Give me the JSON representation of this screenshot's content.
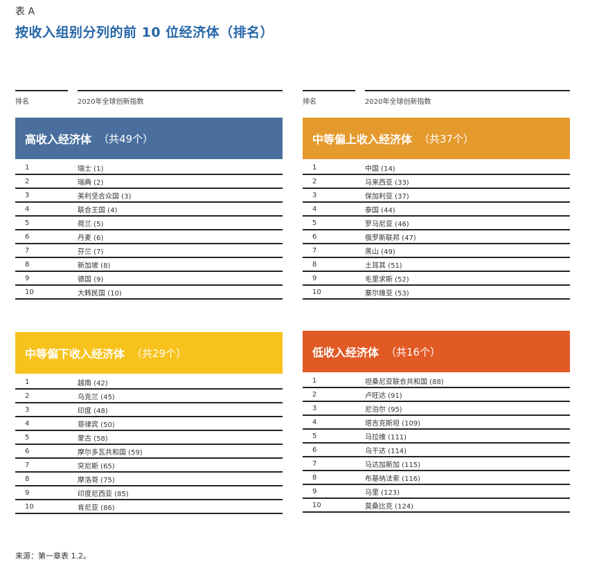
{
  "header": {
    "table_label": "表 A",
    "title": "按收入组别分列的前 10 位经济体（排名）"
  },
  "columns": {
    "rank": "排名",
    "name": "2020年全球创新指数"
  },
  "colors": {
    "title": "#2566a8",
    "high": "#4a6f9f",
    "upper_middle": "#e59a2e",
    "lower_middle": "#f7c21b",
    "low": "#e15a26"
  },
  "groups": [
    {
      "title": "高收入经济体",
      "count": "（共49个）",
      "rows": [
        {
          "rank": "1",
          "name": "瑞士 (1)"
        },
        {
          "rank": "2",
          "name": "瑞典 (2)"
        },
        {
          "rank": "3",
          "name": "美利坚合众国 (3)"
        },
        {
          "rank": "4",
          "name": "联合王国 (4)"
        },
        {
          "rank": "5",
          "name": "荷兰 (5)"
        },
        {
          "rank": "6",
          "name": "丹麦 (6)"
        },
        {
          "rank": "7",
          "name": "芬兰 (7)"
        },
        {
          "rank": "8",
          "name": "新加坡 (8)"
        },
        {
          "rank": "9",
          "name": "德国 (9)"
        },
        {
          "rank": "10",
          "name": "大韩民国 (10)"
        }
      ]
    },
    {
      "title": "中等偏上收入经济体",
      "count": "（共37个）",
      "rows": [
        {
          "rank": "1",
          "name": "中国 (14)"
        },
        {
          "rank": "2",
          "name": "马来西亚 (33)"
        },
        {
          "rank": "3",
          "name": "保加利亚 (37)"
        },
        {
          "rank": "4",
          "name": "泰国 (44)"
        },
        {
          "rank": "5",
          "name": "罗马尼亚 (46)"
        },
        {
          "rank": "6",
          "name": "俄罗斯联邦 (47)"
        },
        {
          "rank": "7",
          "name": "黑山 (49)"
        },
        {
          "rank": "8",
          "name": "土耳其 (51)"
        },
        {
          "rank": "9",
          "name": "毛里求斯 (52)"
        },
        {
          "rank": "10",
          "name": "塞尔维亚 (53)"
        }
      ]
    },
    {
      "title": "中等偏下收入经济体",
      "count": "（共29个）",
      "rows": [
        {
          "rank": "1",
          "name": "越南 (42)"
        },
        {
          "rank": "2",
          "name": "乌克兰 (45)"
        },
        {
          "rank": "3",
          "name": "印度 (48)"
        },
        {
          "rank": "4",
          "name": "菲律宾 (50)"
        },
        {
          "rank": "5",
          "name": "蒙古 (58)"
        },
        {
          "rank": "6",
          "name": "摩尔多瓦共和国 (59)"
        },
        {
          "rank": "7",
          "name": "突尼斯 (65)"
        },
        {
          "rank": "8",
          "name": "摩洛哥 (75)"
        },
        {
          "rank": "9",
          "name": "印度尼西亚 (85)"
        },
        {
          "rank": "10",
          "name": "肯尼亚 (86)"
        }
      ]
    },
    {
      "title": "低收入经济体",
      "count": "（共16个）",
      "rows": [
        {
          "rank": "1",
          "name": "坦桑尼亚联合共和国 (88)"
        },
        {
          "rank": "2",
          "name": "卢旺达 (91)"
        },
        {
          "rank": "3",
          "name": "尼泊尔 (95)"
        },
        {
          "rank": "4",
          "name": "塔吉克斯坦 (109)"
        },
        {
          "rank": "5",
          "name": "马拉维 (111)"
        },
        {
          "rank": "6",
          "name": "乌干达 (114)"
        },
        {
          "rank": "7",
          "name": "马达加斯加 (115)"
        },
        {
          "rank": "8",
          "name": "布基纳法索 (116)"
        },
        {
          "rank": "9",
          "name": "马里 (123)"
        },
        {
          "rank": "10",
          "name": "莫桑比克 (124)"
        }
      ]
    }
  ],
  "footer": {
    "source": "来源：第一章表 1.2。"
  }
}
